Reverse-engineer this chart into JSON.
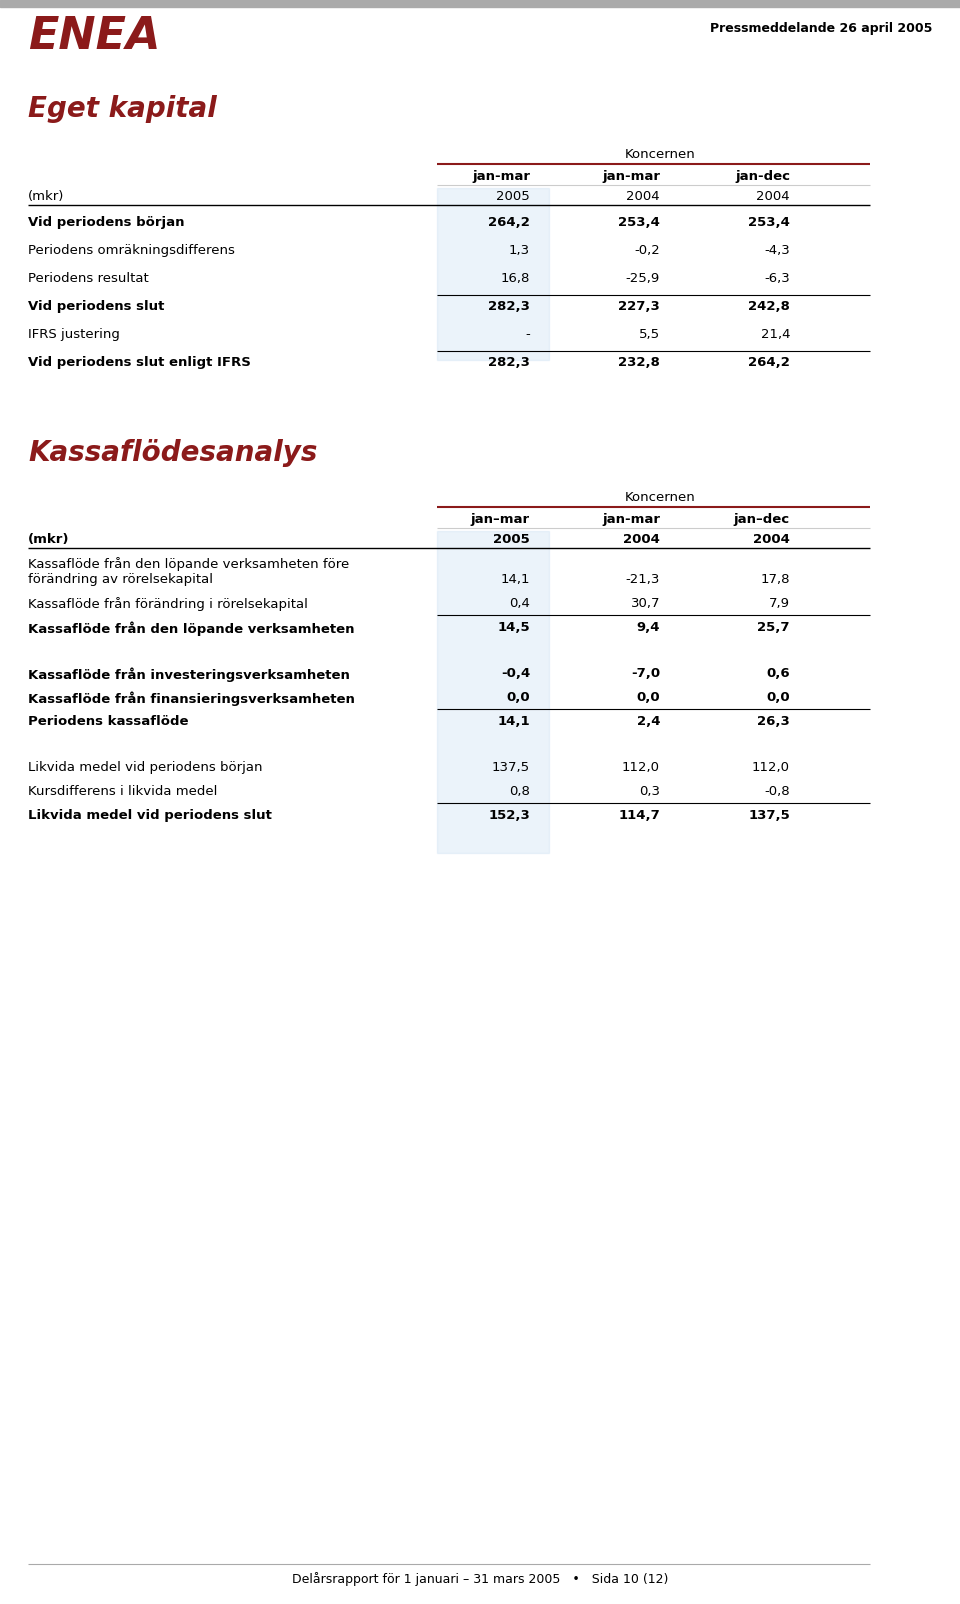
{
  "bg_color": "#ffffff",
  "top_bar_color": "#aaaaaa",
  "enea_color": "#8B1A1A",
  "header_right_text": "Pressmeddelande 26 april 2005",
  "section1_title": "Eget kapital",
  "koncernen_label": "Koncernen",
  "col_headers_t1": [
    "jan-mar",
    "jan-mar",
    "jan-dec"
  ],
  "col_years_t1": [
    "2005",
    "2004",
    "2004"
  ],
  "mkr_label": "(mkr)",
  "table1_rows": [
    {
      "label": "Vid periodens början",
      "bold": true,
      "values": [
        "264,2",
        "253,4",
        "253,4"
      ],
      "line_above": false
    },
    {
      "label": "Periodens omräkningsdifferens",
      "bold": false,
      "values": [
        "1,3",
        "-0,2",
        "-4,3"
      ],
      "line_above": false
    },
    {
      "label": "Periodens resultat",
      "bold": false,
      "values": [
        "16,8",
        "-25,9",
        "-6,3"
      ],
      "line_above": false
    },
    {
      "label": "Vid periodens slut",
      "bold": true,
      "values": [
        "282,3",
        "227,3",
        "242,8"
      ],
      "line_above": true
    },
    {
      "label": "IFRS justering",
      "bold": false,
      "values": [
        "-",
        "5,5",
        "21,4"
      ],
      "line_above": false
    },
    {
      "label": "Vid periodens slut enligt IFRS",
      "bold": true,
      "values": [
        "282,3",
        "232,8",
        "264,2"
      ],
      "line_above": true
    }
  ],
  "section2_title": "Kassaflödesanalys",
  "col_headers_t2": [
    "jan–mar",
    "jan-mar",
    "jan–dec"
  ],
  "col_years_t2": [
    "2005",
    "2004",
    "2004"
  ],
  "table2_rows": [
    {
      "label": "Kassaflöde från den löpande verksamheten före",
      "label2": "förändring av rörelsekapital",
      "bold": false,
      "values": [
        "14,1",
        "-21,3",
        "17,8"
      ],
      "line_below": false,
      "spacer": false,
      "two_line": true
    },
    {
      "label": "Kassaflöde från förändring i rörelsekapital",
      "label2": "",
      "bold": false,
      "values": [
        "0,4",
        "30,7",
        "7,9"
      ],
      "line_below": true,
      "spacer": false,
      "two_line": false
    },
    {
      "label": "Kassaflöde från den löpande verksamheten",
      "label2": "",
      "bold": true,
      "values": [
        "14,5",
        "9,4",
        "25,7"
      ],
      "line_below": false,
      "spacer": false,
      "two_line": false
    },
    {
      "label": "",
      "label2": "",
      "bold": false,
      "values": [
        "",
        "",
        ""
      ],
      "line_below": false,
      "spacer": true,
      "two_line": false
    },
    {
      "label": "Kassaflöde från investeringsverksamheten",
      "label2": "",
      "bold": true,
      "values": [
        "-0,4",
        "-7,0",
        "0,6"
      ],
      "line_below": false,
      "spacer": false,
      "two_line": false
    },
    {
      "label": "Kassaflöde från finansieringsverksamheten",
      "label2": "",
      "bold": true,
      "values": [
        "0,0",
        "0,0",
        "0,0"
      ],
      "line_below": true,
      "spacer": false,
      "two_line": false
    },
    {
      "label": "Periodens kassaflöde",
      "label2": "",
      "bold": true,
      "values": [
        "14,1",
        "2,4",
        "26,3"
      ],
      "line_below": false,
      "spacer": false,
      "two_line": false
    },
    {
      "label": "",
      "label2": "",
      "bold": false,
      "values": [
        "",
        "",
        ""
      ],
      "line_below": false,
      "spacer": true,
      "two_line": false
    },
    {
      "label": "Likvida medel vid periodens början",
      "label2": "",
      "bold": false,
      "values": [
        "137,5",
        "112,0",
        "112,0"
      ],
      "line_below": false,
      "spacer": false,
      "two_line": false
    },
    {
      "label": "Kursdifferens i likvida medel",
      "label2": "",
      "bold": false,
      "values": [
        "0,8",
        "0,3",
        "-0,8"
      ],
      "line_below": true,
      "spacer": false,
      "two_line": false
    },
    {
      "label": "Likvida medel vid periodens slut",
      "label2": "",
      "bold": true,
      "values": [
        "152,3",
        "114,7",
        "137,5"
      ],
      "line_below": false,
      "spacer": false,
      "two_line": false
    }
  ],
  "footer_text": "Delårsrapport för 1 januari – 31 mars 2005   •   Sida 10 (12)"
}
